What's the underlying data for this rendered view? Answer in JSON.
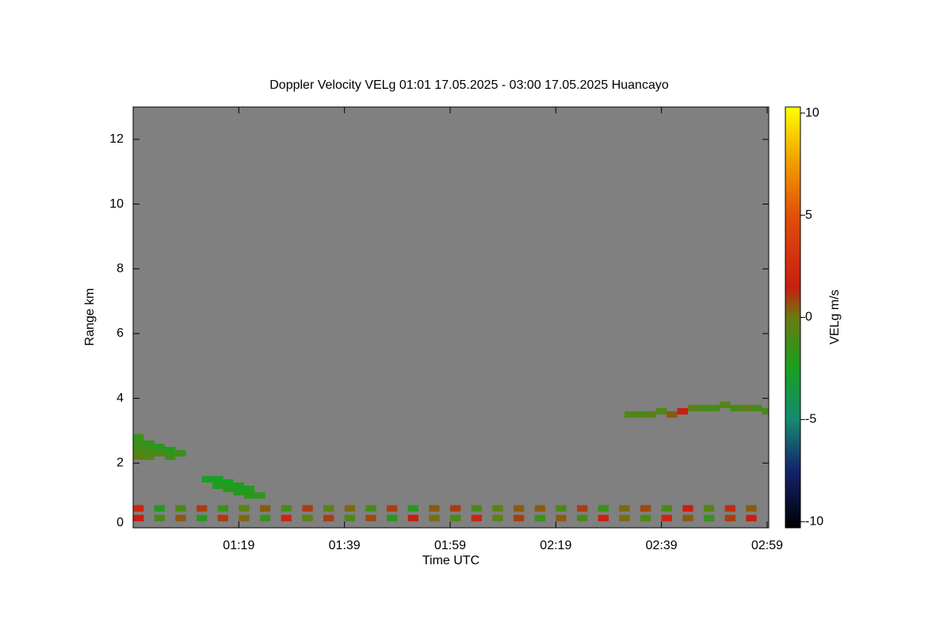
{
  "chart_data": {
    "type": "heatmap",
    "title": "Doppler Velocity VELg   01:01 17.05.2025 - 03:00 17.05.2025 Huancayo",
    "x_label": "Time UTC",
    "y_label": "Range km",
    "colorbar_label": "VELg m/s",
    "background_color": "#808080",
    "xlim": [
      59,
      179.3
    ],
    "xticks": [
      {
        "value": 79,
        "label": "01:19"
      },
      {
        "value": 99,
        "label": "01:39"
      },
      {
        "value": 119,
        "label": "01:59"
      },
      {
        "value": 139,
        "label": "02:19"
      },
      {
        "value": 159,
        "label": "02:39"
      },
      {
        "value": 179,
        "label": "02:59"
      }
    ],
    "ylim": [
      0,
      13
    ],
    "yticks": [
      0,
      2,
      4,
      6,
      8,
      10,
      12
    ],
    "clim": [
      -10.3,
      10.3
    ],
    "cticks": [
      -10,
      -5,
      0,
      5,
      10
    ],
    "colormap": [
      {
        "value": -10.3,
        "color": "#000000"
      },
      {
        "value": -7.5,
        "color": "#14236e"
      },
      {
        "value": -5,
        "color": "#168a6e"
      },
      {
        "value": -2.5,
        "color": "#18a020"
      },
      {
        "value": 0,
        "color": "#6a7a12"
      },
      {
        "value": 1.5,
        "color": "#c81e10"
      },
      {
        "value": 5,
        "color": "#e0500a"
      },
      {
        "value": 7.5,
        "color": "#f09a00"
      },
      {
        "value": 10.3,
        "color": "#ffff00"
      }
    ],
    "cell_minutes": 2,
    "cell_km": 0.2,
    "cells": {
      "time": [
        60,
        64,
        68,
        72,
        76,
        80,
        84,
        88,
        92,
        96,
        100,
        104,
        108,
        112,
        116,
        120,
        124,
        128,
        132,
        136,
        140,
        144,
        148,
        152,
        156,
        160,
        164,
        168,
        172,
        176,
        60,
        64,
        68,
        72,
        76,
        80,
        84,
        88,
        92,
        96,
        100,
        104,
        108,
        112,
        116,
        120,
        124,
        128,
        132,
        136,
        140,
        144,
        148,
        152,
        156,
        160,
        164,
        168,
        172,
        176,
        60,
        60,
        60,
        60,
        62,
        62,
        62,
        64,
        64,
        66,
        66,
        68,
        73,
        75,
        75,
        77,
        77,
        79,
        79,
        81,
        81,
        83,
        153,
        155,
        157,
        159,
        161,
        163,
        165,
        167,
        169,
        171,
        173,
        175,
        177,
        179
      ],
      "range": [
        0.3,
        0.3,
        0.3,
        0.3,
        0.3,
        0.3,
        0.3,
        0.3,
        0.3,
        0.3,
        0.3,
        0.3,
        0.3,
        0.3,
        0.3,
        0.3,
        0.3,
        0.3,
        0.3,
        0.3,
        0.3,
        0.3,
        0.3,
        0.3,
        0.3,
        0.3,
        0.3,
        0.3,
        0.3,
        0.3,
        0.6,
        0.6,
        0.6,
        0.6,
        0.6,
        0.6,
        0.6,
        0.6,
        0.6,
        0.6,
        0.6,
        0.6,
        0.6,
        0.6,
        0.6,
        0.6,
        0.6,
        0.6,
        0.6,
        0.6,
        0.6,
        0.6,
        0.6,
        0.6,
        0.6,
        0.6,
        0.6,
        0.6,
        0.6,
        0.6,
        2.8,
        2.6,
        2.4,
        2.2,
        2.6,
        2.4,
        2.2,
        2.5,
        2.3,
        2.4,
        2.2,
        2.3,
        1.5,
        1.5,
        1.3,
        1.4,
        1.2,
        1.3,
        1.1,
        1.2,
        1.0,
        1.0,
        3.5,
        3.5,
        3.5,
        3.6,
        3.5,
        3.6,
        3.7,
        3.7,
        3.7,
        3.8,
        3.7,
        3.7,
        3.7,
        3.6
      ],
      "velocity": [
        1.5,
        -1,
        0.5,
        -2,
        1,
        0.3,
        -1.5,
        2,
        -0.5,
        1,
        -1,
        0.8,
        -2,
        1.5,
        0.2,
        -1,
        2,
        -0.5,
        1,
        -1.5,
        0.5,
        -1,
        1.8,
        0.2,
        -1,
        2,
        0.5,
        -1.5,
        1,
        1.5,
        2,
        -2,
        -1,
        1,
        -1.5,
        -0.5,
        0.5,
        -1,
        1,
        -0.5,
        0.3,
        -1,
        1,
        -2,
        0.5,
        1,
        -1,
        -0.3,
        0.5,
        0.5,
        -1,
        1,
        -1.5,
        0.3,
        0.8,
        -1,
        1.5,
        -0.5,
        1.2,
        0.5,
        -1.5,
        -1.5,
        -1,
        -0.5,
        -1.8,
        -1.2,
        -0.8,
        -2,
        -1,
        -2,
        -1.2,
        -1.5,
        -2.5,
        -2.5,
        -2.2,
        -2.5,
        -2,
        -2.4,
        -2,
        -2.2,
        -2,
        -1.8,
        -0.8,
        -1,
        -0.5,
        -0.8,
        0.5,
        1.5,
        -0.5,
        -1,
        -1.2,
        -0.8,
        -1,
        -0.5,
        -1,
        -1.2
      ]
    }
  }
}
